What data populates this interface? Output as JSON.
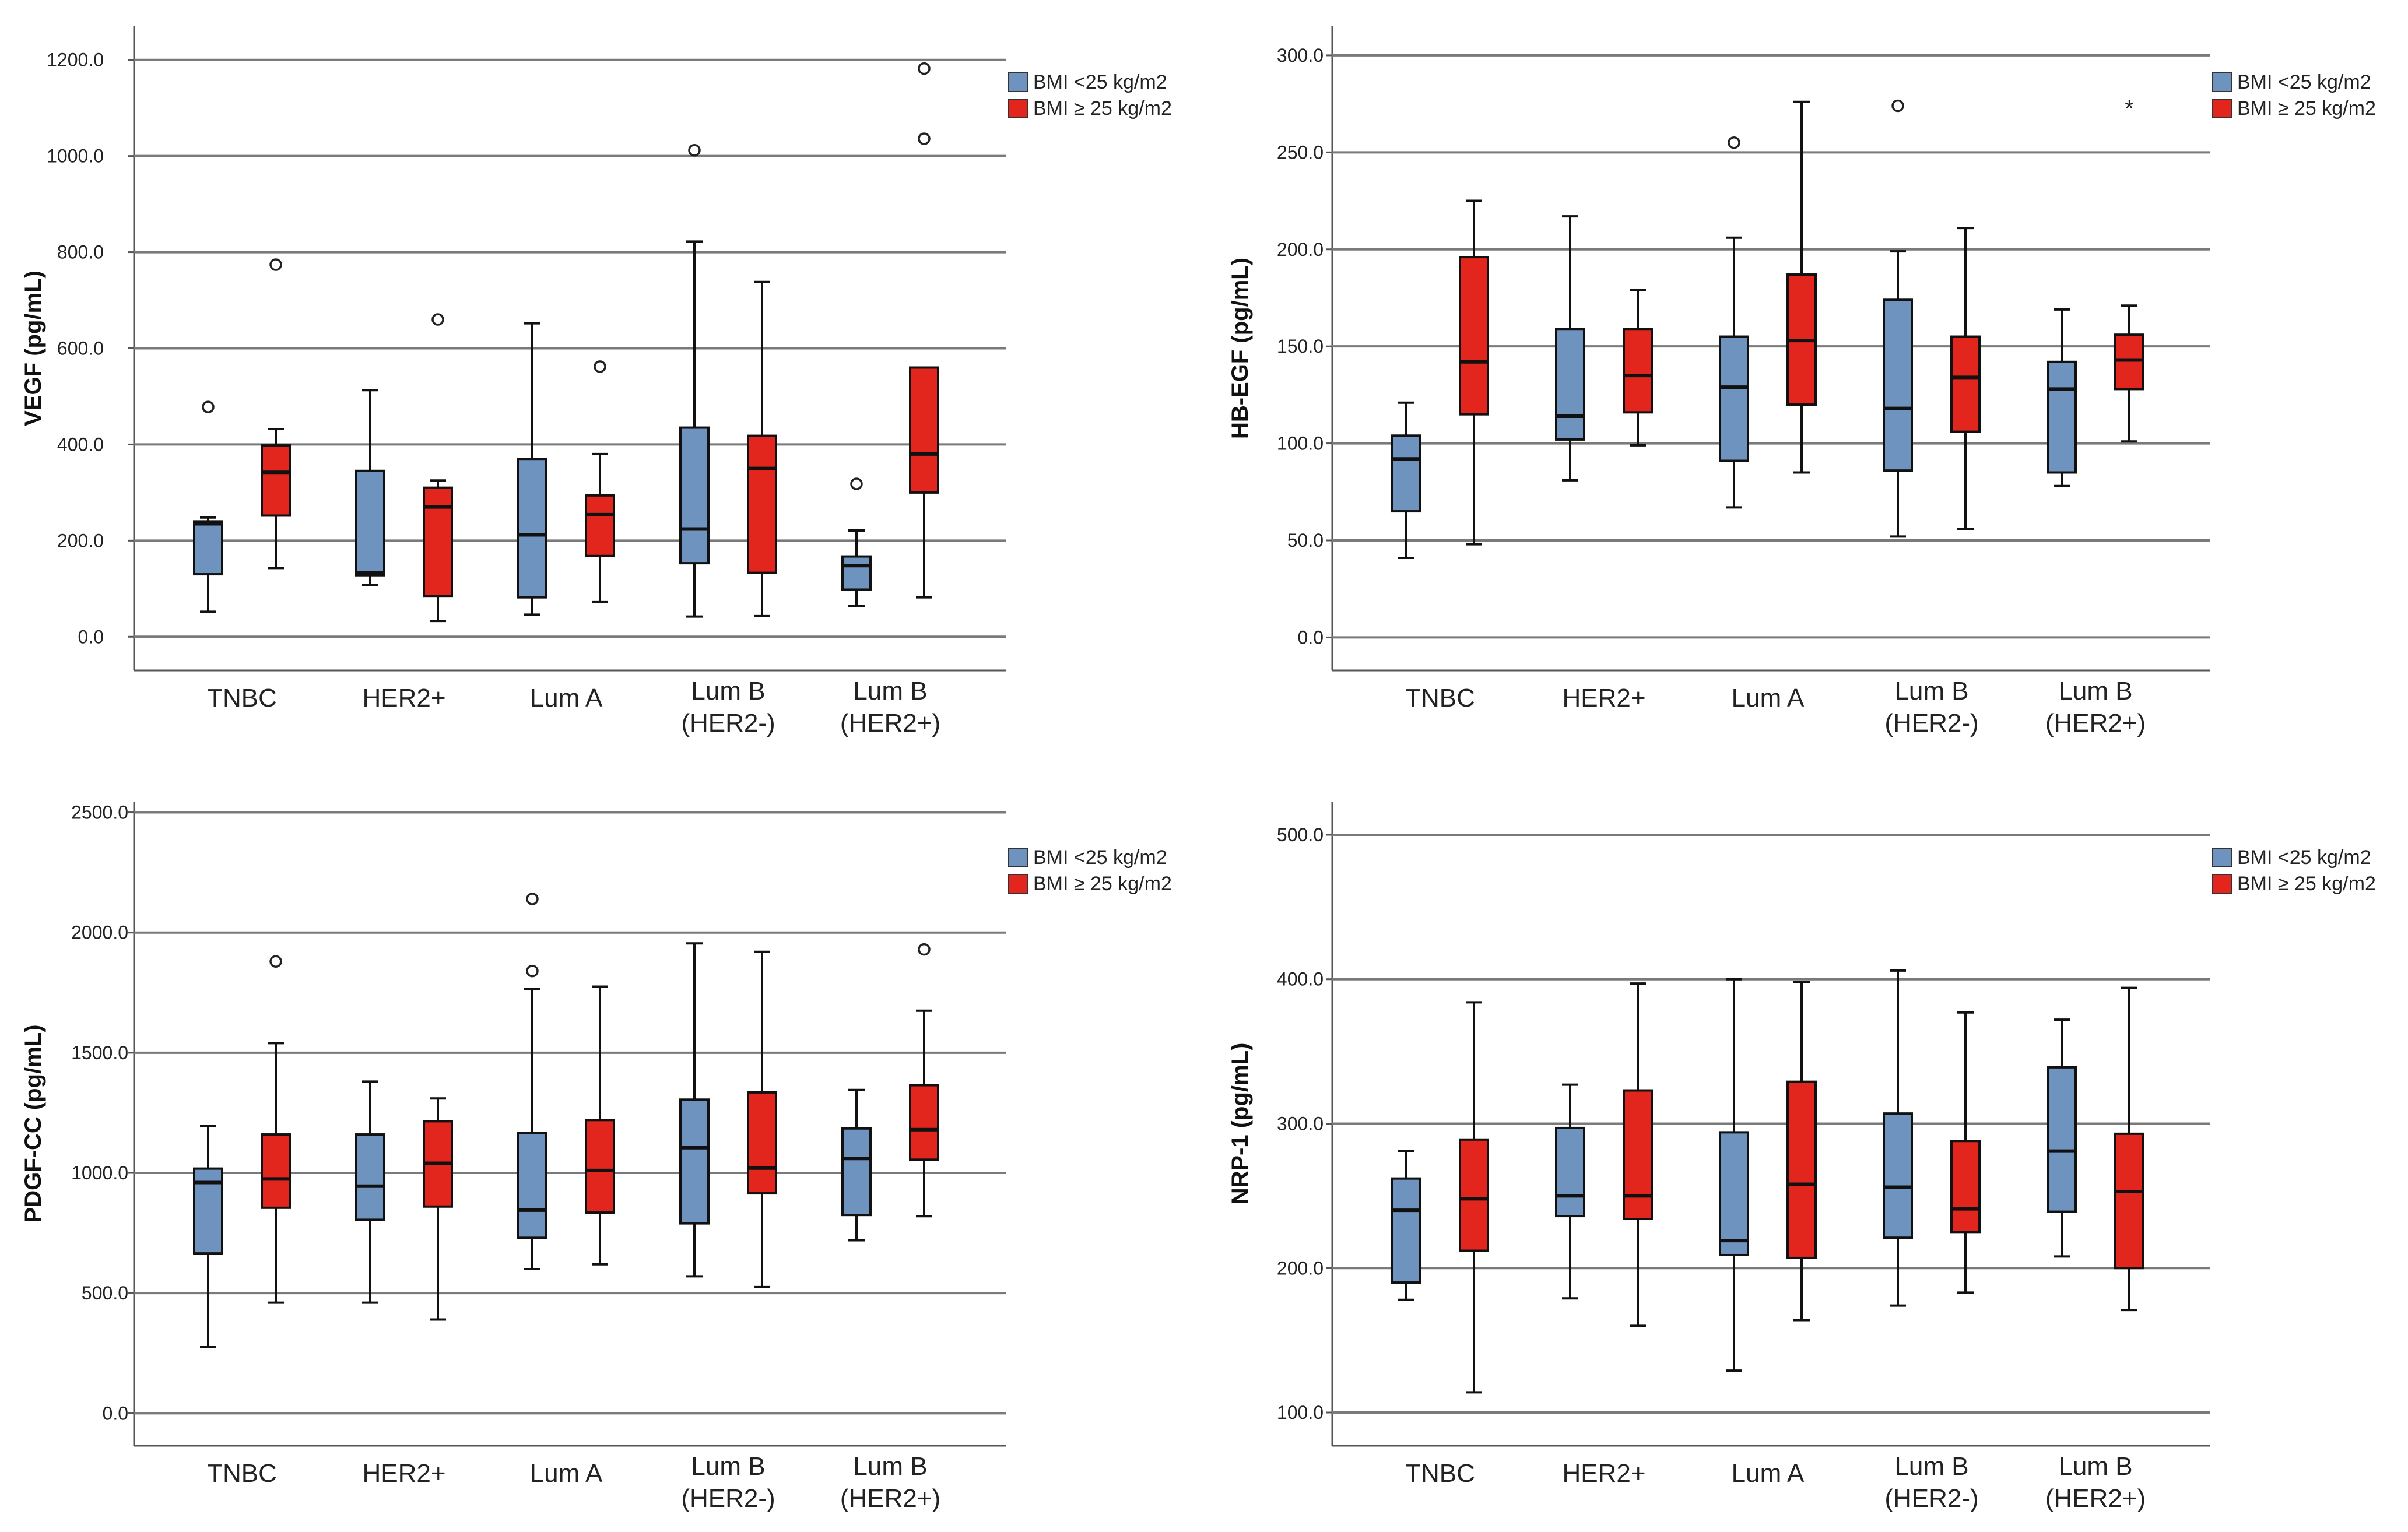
{
  "figure": {
    "legend": {
      "bmi_low_label": "BMI <25 kg/m2",
      "bmi_high_label": "BMI ≥ 25 kg/m2"
    },
    "colors": {
      "bmi_low": "#6f93bf",
      "bmi_high": "#e2261d"
    }
  },
  "chart_data": [
    {
      "type": "box",
      "panel": "top-left",
      "title": "",
      "ylabel": "VEGF (pg/mL)",
      "xlabel": "",
      "ylim": [
        -70,
        1270
      ],
      "yticks": [
        0,
        200,
        400,
        600,
        800,
        1000,
        1200
      ],
      "ytick_labels": [
        "0.0",
        "200.0",
        "400.0",
        "600.0",
        "800.0",
        "1000.0",
        "1200.0"
      ],
      "categories": [
        {
          "line1": "TNBC",
          "line2": ""
        },
        {
          "line1": "HER2+",
          "line2": ""
        },
        {
          "line1": "Lum A",
          "line2": ""
        },
        {
          "line1": "Lum B",
          "line2": "(HER2-)"
        },
        {
          "line1": "Lum B",
          "line2": "(HER2+)"
        }
      ],
      "series": [
        {
          "name": "BMI <25 kg/m2",
          "boxes": [
            {
              "min": 52,
              "q1": 130,
              "median": 235,
              "q3": 240,
              "max": 248,
              "outliers": [
                478
              ],
              "extremes": []
            },
            {
              "min": 108,
              "q1": 128,
              "median": 133,
              "q3": 345,
              "max": 513,
              "outliers": [],
              "extremes": []
            },
            {
              "min": 46,
              "q1": 82,
              "median": 212,
              "q3": 370,
              "max": 652,
              "outliers": [],
              "extremes": []
            },
            {
              "min": 42,
              "q1": 153,
              "median": 224,
              "q3": 435,
              "max": 822,
              "outliers": [
                1012
              ],
              "extremes": []
            },
            {
              "min": 64,
              "q1": 98,
              "median": 148,
              "q3": 167,
              "max": 221,
              "outliers": [
                318
              ],
              "extremes": []
            }
          ]
        },
        {
          "name": "BMI ≥ 25 kg/m2",
          "boxes": [
            {
              "min": 143,
              "q1": 252,
              "median": 342,
              "q3": 398,
              "max": 432,
              "outliers": [
                774
              ],
              "extremes": []
            },
            {
              "min": 33,
              "q1": 85,
              "median": 270,
              "q3": 310,
              "max": 325,
              "outliers": [
                660
              ],
              "extremes": []
            },
            {
              "min": 72,
              "q1": 168,
              "median": 254,
              "q3": 294,
              "max": 380,
              "outliers": [
                562
              ],
              "extremes": []
            },
            {
              "min": 43,
              "q1": 133,
              "median": 350,
              "q3": 418,
              "max": 738,
              "outliers": [],
              "extremes": []
            },
            {
              "min": 82,
              "q1": 300,
              "median": 380,
              "q3": 560,
              "max": 560,
              "outliers": [
                1036,
                1182
              ],
              "extremes": []
            }
          ]
        }
      ]
    },
    {
      "type": "box",
      "panel": "top-right",
      "title": "",
      "ylabel": "HB-EGF (pg/mL)",
      "xlabel": "",
      "ylim": [
        -17,
        315
      ],
      "yticks": [
        0,
        50,
        100,
        150,
        200,
        250,
        300
      ],
      "ytick_labels": [
        "0.0",
        "50.0",
        "100.0",
        "150.0",
        "200.0",
        "250.0",
        "300.0"
      ],
      "categories": [
        {
          "line1": "TNBC",
          "line2": ""
        },
        {
          "line1": "HER2+",
          "line2": ""
        },
        {
          "line1": "Lum A",
          "line2": ""
        },
        {
          "line1": "Lum B",
          "line2": "(HER2-)"
        },
        {
          "line1": "Lum B",
          "line2": "(HER2+)"
        }
      ],
      "series": [
        {
          "name": "BMI <25 kg/m2",
          "boxes": [
            {
              "min": 41,
              "q1": 65,
              "median": 92,
              "q3": 104,
              "max": 121,
              "outliers": [],
              "extremes": []
            },
            {
              "min": 81,
              "q1": 102,
              "median": 114,
              "q3": 159,
              "max": 217,
              "outliers": [],
              "extremes": []
            },
            {
              "min": 67,
              "q1": 91,
              "median": 129,
              "q3": 155,
              "max": 206,
              "outliers": [
                255
              ],
              "extremes": []
            },
            {
              "min": 52,
              "q1": 86,
              "median": 118,
              "q3": 174,
              "max": 199,
              "outliers": [
                274
              ],
              "extremes": []
            },
            {
              "min": 78,
              "q1": 85,
              "median": 128,
              "q3": 142,
              "max": 169,
              "outliers": [],
              "extremes": []
            }
          ]
        },
        {
          "name": "BMI ≥ 25 kg/m2",
          "boxes": [
            {
              "min": 48,
              "q1": 115,
              "median": 142,
              "q3": 196,
              "max": 225,
              "outliers": [],
              "extremes": []
            },
            {
              "min": 99,
              "q1": 116,
              "median": 135,
              "q3": 159,
              "max": 179,
              "outliers": [],
              "extremes": []
            },
            {
              "min": 85,
              "q1": 120,
              "median": 153,
              "q3": 187,
              "max": 276,
              "outliers": [],
              "extremes": []
            },
            {
              "min": 56,
              "q1": 106,
              "median": 134,
              "q3": 155,
              "max": 211,
              "outliers": [],
              "extremes": []
            },
            {
              "min": 101,
              "q1": 128,
              "median": 143,
              "q3": 156,
              "max": 171,
              "outliers": [],
              "extremes": [
                274
              ]
            }
          ]
        }
      ]
    },
    {
      "type": "box",
      "panel": "bottom-left",
      "title": "",
      "ylabel": "PDGF-CC (pg/mL)",
      "xlabel": "",
      "ylim": [
        -135,
        2545
      ],
      "yticks": [
        0,
        500,
        1000,
        1500,
        2000,
        2500
      ],
      "ytick_labels": [
        "0.0",
        "500.0",
        "1000.0",
        "1500.0",
        "2000.0",
        "2500.0"
      ],
      "categories": [
        {
          "line1": "TNBC",
          "line2": ""
        },
        {
          "line1": "HER2+",
          "line2": ""
        },
        {
          "line1": "Lum A",
          "line2": ""
        },
        {
          "line1": "Lum B",
          "line2": "(HER2-)"
        },
        {
          "line1": "Lum B",
          "line2": "(HER2+)"
        }
      ],
      "series": [
        {
          "name": "BMI <25 kg/m2",
          "boxes": [
            {
              "min": 275,
              "q1": 665,
              "median": 960,
              "q3": 1018,
              "max": 1195,
              "outliers": [],
              "extremes": []
            },
            {
              "min": 460,
              "q1": 805,
              "median": 945,
              "q3": 1160,
              "max": 1380,
              "outliers": [],
              "extremes": []
            },
            {
              "min": 600,
              "q1": 730,
              "median": 845,
              "q3": 1165,
              "max": 1765,
              "outliers": [
                1840,
                2140
              ],
              "extremes": []
            },
            {
              "min": 570,
              "q1": 790,
              "median": 1105,
              "q3": 1305,
              "max": 1955,
              "outliers": [],
              "extremes": []
            },
            {
              "min": 720,
              "q1": 825,
              "median": 1060,
              "q3": 1185,
              "max": 1345,
              "outliers": [],
              "extremes": []
            }
          ]
        },
        {
          "name": "BMI ≥ 25 kg/m2",
          "boxes": [
            {
              "min": 460,
              "q1": 855,
              "median": 975,
              "q3": 1160,
              "max": 1540,
              "outliers": [
                1880
              ],
              "extremes": []
            },
            {
              "min": 390,
              "q1": 860,
              "median": 1040,
              "q3": 1215,
              "max": 1310,
              "outliers": [],
              "extremes": []
            },
            {
              "min": 620,
              "q1": 835,
              "median": 1010,
              "q3": 1220,
              "max": 1775,
              "outliers": [],
              "extremes": []
            },
            {
              "min": 525,
              "q1": 915,
              "median": 1020,
              "q3": 1335,
              "max": 1920,
              "outliers": [],
              "extremes": []
            },
            {
              "min": 820,
              "q1": 1055,
              "median": 1180,
              "q3": 1365,
              "max": 1675,
              "outliers": [
                1930
              ],
              "extremes": []
            }
          ]
        }
      ]
    },
    {
      "type": "box",
      "panel": "bottom-right",
      "title": "",
      "ylabel": "NRP-1 (pg/mL)",
      "xlabel": "",
      "ylim": [
        77,
        523
      ],
      "yticks": [
        100,
        200,
        300,
        400,
        500
      ],
      "ytick_labels": [
        "100.0",
        "200.0",
        "300.0",
        "400.0",
        "500.0"
      ],
      "categories": [
        {
          "line1": "TNBC",
          "line2": ""
        },
        {
          "line1": "HER2+",
          "line2": ""
        },
        {
          "line1": "Lum A",
          "line2": ""
        },
        {
          "line1": "Lum B",
          "line2": "(HER2-)"
        },
        {
          "line1": "Lum B",
          "line2": "(HER2+)"
        }
      ],
      "series": [
        {
          "name": "BMI <25 kg/m2",
          "boxes": [
            {
              "min": 178,
              "q1": 190,
              "median": 240,
              "q3": 262,
              "max": 281,
              "outliers": [],
              "extremes": []
            },
            {
              "min": 179,
              "q1": 236,
              "median": 250,
              "q3": 297,
              "max": 327,
              "outliers": [],
              "extremes": []
            },
            {
              "min": 129,
              "q1": 209,
              "median": 219,
              "q3": 294,
              "max": 400,
              "outliers": [],
              "extremes": []
            },
            {
              "min": 174,
              "q1": 221,
              "median": 256,
              "q3": 307,
              "max": 406,
              "outliers": [],
              "extremes": []
            },
            {
              "min": 208,
              "q1": 239,
              "median": 281,
              "q3": 339,
              "max": 372,
              "outliers": [],
              "extremes": []
            }
          ]
        },
        {
          "name": "BMI ≥ 25 kg/m2",
          "boxes": [
            {
              "min": 114,
              "q1": 212,
              "median": 248,
              "q3": 289,
              "max": 384,
              "outliers": [],
              "extremes": []
            },
            {
              "min": 160,
              "q1": 234,
              "median": 250,
              "q3": 323,
              "max": 397,
              "outliers": [],
              "extremes": []
            },
            {
              "min": 164,
              "q1": 207,
              "median": 258,
              "q3": 329,
              "max": 398,
              "outliers": [],
              "extremes": []
            },
            {
              "min": 183,
              "q1": 225,
              "median": 241,
              "q3": 288,
              "max": 377,
              "outliers": [],
              "extremes": []
            },
            {
              "min": 171,
              "q1": 200,
              "median": 253,
              "q3": 293,
              "max": 394,
              "outliers": [],
              "extremes": []
            }
          ]
        }
      ]
    }
  ]
}
